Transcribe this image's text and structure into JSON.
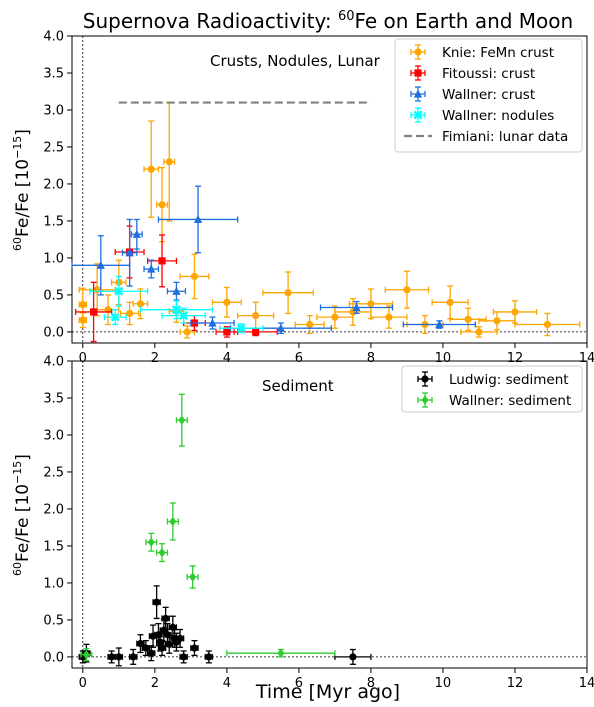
{
  "figure": {
    "title_main": "Supernova Radioactivity: ",
    "title_sup": "60",
    "title_rest": "Fe on Earth and Moon",
    "xlabel": "Time [Myr ago]"
  },
  "chart_data": [
    {
      "type": "scatter",
      "panel": "top",
      "annotation": "Crusts, Nodules, Lunar",
      "ylabel_sup": "60",
      "ylabel_main": "Fe/Fe  [10",
      "ylabel_exp": "−15",
      "ylabel_end": "]",
      "xlim": [
        -0.3,
        14
      ],
      "ylim": [
        -0.15,
        4.0
      ],
      "xticks": [
        0,
        2,
        4,
        6,
        8,
        10,
        12,
        14
      ],
      "yticks": [
        0.0,
        0.5,
        1.0,
        1.5,
        2.0,
        2.5,
        3.0,
        3.5,
        4.0
      ],
      "legend_position": "top-right",
      "series": [
        {
          "name": "Knie: FeMn crust",
          "color": "#FFA500",
          "marker": "circle",
          "points": [
            {
              "x": 0.0,
              "y": 0.16,
              "xerr": 0.1,
              "yerr": 0.1
            },
            {
              "x": 0.0,
              "y": 0.37,
              "xerr": 0.1,
              "yerr": 0.22
            },
            {
              "x": 0.4,
              "y": 0.57,
              "xerr": 0.5,
              "yerr": 0.35
            },
            {
              "x": 0.7,
              "y": 0.3,
              "xerr": 0.3,
              "yerr": 0.2
            },
            {
              "x": 1.0,
              "y": 0.67,
              "xerr": 0.2,
              "yerr": 0.3
            },
            {
              "x": 1.3,
              "y": 0.25,
              "xerr": 0.25,
              "yerr": 0.15
            },
            {
              "x": 1.6,
              "y": 0.38,
              "xerr": 0.2,
              "yerr": 0.2
            },
            {
              "x": 1.9,
              "y": 2.2,
              "xerr": 0.2,
              "yerr": 0.65
            },
            {
              "x": 2.2,
              "y": 1.72,
              "xerr": 0.15,
              "yerr": 0.5
            },
            {
              "x": 2.4,
              "y": 2.3,
              "xerr": 0.15,
              "yerr": 0.8
            },
            {
              "x": 2.6,
              "y": 0.28,
              "xerr": 0.2,
              "yerr": 0.15
            },
            {
              "x": 2.9,
              "y": 0.0,
              "xerr": 0.2,
              "yerr": 0.08
            },
            {
              "x": 3.1,
              "y": 0.75,
              "xerr": 0.4,
              "yerr": 0.3
            },
            {
              "x": 4.0,
              "y": 0.4,
              "xerr": 0.4,
              "yerr": 0.2
            },
            {
              "x": 4.8,
              "y": 0.22,
              "xerr": 0.5,
              "yerr": 0.18
            },
            {
              "x": 5.7,
              "y": 0.53,
              "xerr": 0.7,
              "yerr": 0.28
            },
            {
              "x": 6.3,
              "y": 0.1,
              "xerr": 0.4,
              "yerr": 0.12
            },
            {
              "x": 7.0,
              "y": 0.2,
              "xerr": 0.5,
              "yerr": 0.15
            },
            {
              "x": 7.5,
              "y": 0.27,
              "xerr": 0.5,
              "yerr": 0.18
            },
            {
              "x": 8.0,
              "y": 0.38,
              "xerr": 0.6,
              "yerr": 0.2
            },
            {
              "x": 8.5,
              "y": 0.2,
              "xerr": 0.5,
              "yerr": 0.15
            },
            {
              "x": 9.0,
              "y": 0.57,
              "xerr": 0.6,
              "yerr": 0.25
            },
            {
              "x": 9.5,
              "y": 0.1,
              "xerr": 0.5,
              "yerr": 0.12
            },
            {
              "x": 10.2,
              "y": 0.4,
              "xerr": 0.5,
              "yerr": 0.22
            },
            {
              "x": 10.7,
              "y": 0.17,
              "xerr": 0.5,
              "yerr": 0.15
            },
            {
              "x": 11.0,
              "y": 0.0,
              "xerr": 0.5,
              "yerr": 0.07
            },
            {
              "x": 11.5,
              "y": 0.15,
              "xerr": 0.5,
              "yerr": 0.12
            },
            {
              "x": 12.0,
              "y": 0.27,
              "xerr": 0.6,
              "yerr": 0.15
            },
            {
              "x": 12.9,
              "y": 0.1,
              "xerr": 0.9,
              "yerr": 0.15
            }
          ]
        },
        {
          "name": "Fitoussi: crust",
          "color": "#FF0000",
          "marker": "square",
          "points": [
            {
              "x": 0.3,
              "y": 0.27,
              "xerr": 0.5,
              "yerr": 0.4
            },
            {
              "x": 1.3,
              "y": 1.08,
              "xerr": 0.4,
              "yerr": 0.35
            },
            {
              "x": 2.2,
              "y": 0.96,
              "xerr": 0.4,
              "yerr": 0.35
            },
            {
              "x": 3.1,
              "y": 0.12,
              "xerr": 0.3,
              "yerr": 0.1
            },
            {
              "x": 4.0,
              "y": 0.0,
              "xerr": 0.3,
              "yerr": 0.07
            },
            {
              "x": 4.8,
              "y": 0.0,
              "xerr": 0.6,
              "yerr": 0.05
            }
          ]
        },
        {
          "name": "Wallner: crust",
          "color": "#1F6FE0",
          "marker": "triangle",
          "points": [
            {
              "x": 0.5,
              "y": 0.9,
              "xerr": 0.8,
              "yerr": 0.4
            },
            {
              "x": 1.3,
              "y": 1.07,
              "xerr": 0.2,
              "yerr": 0.45
            },
            {
              "x": 1.5,
              "y": 1.32,
              "xerr": 0.15,
              "yerr": 0.2
            },
            {
              "x": 1.9,
              "y": 0.85,
              "xerr": 0.2,
              "yerr": 0.12
            },
            {
              "x": 2.6,
              "y": 0.55,
              "xerr": 0.25,
              "yerr": 0.12
            },
            {
              "x": 3.2,
              "y": 1.52,
              "xerr": 1.1,
              "yerr": 0.45
            },
            {
              "x": 3.6,
              "y": 0.12,
              "xerr": 0.6,
              "yerr": 0.08
            },
            {
              "x": 5.5,
              "y": 0.05,
              "xerr": 1.4,
              "yerr": 0.07
            },
            {
              "x": 7.6,
              "y": 0.33,
              "xerr": 1.0,
              "yerr": 0.08
            },
            {
              "x": 9.9,
              "y": 0.1,
              "xerr": 1.0,
              "yerr": 0.05
            }
          ]
        },
        {
          "name": "Wallner: nodules",
          "color": "#00FFFF",
          "marker": "x",
          "points": [
            {
              "x": 1.0,
              "y": 0.55,
              "xerr": 0.8,
              "yerr": 0.2
            },
            {
              "x": 0.9,
              "y": 0.2,
              "xerr": 0.3,
              "yerr": 0.1
            },
            {
              "x": 2.6,
              "y": 0.3,
              "xerr": 1.0,
              "yerr": 0.12
            },
            {
              "x": 2.8,
              "y": 0.22,
              "xerr": 0.6,
              "yerr": 0.1
            },
            {
              "x": 4.4,
              "y": 0.05,
              "xerr": 0.6,
              "yerr": 0.06
            }
          ]
        },
        {
          "name": "Fimiani: lunar data",
          "color": "#808080",
          "style": "dashed",
          "line": {
            "x": [
              1.0,
              8.0
            ],
            "y": [
              3.1,
              3.1
            ]
          }
        }
      ]
    },
    {
      "type": "scatter",
      "panel": "bottom",
      "annotation": "Sediment",
      "ylabel_sup": "60",
      "ylabel_main": "Fe/Fe  [10",
      "ylabel_exp": "−15",
      "ylabel_end": "]",
      "xlim": [
        -0.3,
        14
      ],
      "ylim": [
        -0.15,
        4.0
      ],
      "xticks": [
        0,
        2,
        4,
        6,
        8,
        10,
        12,
        14
      ],
      "yticks": [
        0.0,
        0.5,
        1.0,
        1.5,
        2.0,
        2.5,
        3.0,
        3.5,
        4.0
      ],
      "legend_position": "top-right",
      "series": [
        {
          "name": "Ludwig: sediment",
          "color": "#000000",
          "marker": "circle",
          "points": [
            {
              "x": 0.0,
              "y": 0.0,
              "xerr": 0.1,
              "yerr": 0.08
            },
            {
              "x": 0.1,
              "y": 0.05,
              "xerr": 0.1,
              "yerr": 0.12
            },
            {
              "x": 0.8,
              "y": 0.0,
              "xerr": 0.1,
              "yerr": 0.08
            },
            {
              "x": 1.0,
              "y": 0.0,
              "xerr": 0.1,
              "yerr": 0.12
            },
            {
              "x": 1.4,
              "y": 0.0,
              "xerr": 0.1,
              "yerr": 0.1
            },
            {
              "x": 1.6,
              "y": 0.18,
              "xerr": 0.1,
              "yerr": 0.12
            },
            {
              "x": 1.75,
              "y": 0.12,
              "xerr": 0.1,
              "yerr": 0.1
            },
            {
              "x": 1.9,
              "y": 0.05,
              "xerr": 0.1,
              "yerr": 0.1
            },
            {
              "x": 1.95,
              "y": 0.28,
              "xerr": 0.1,
              "yerr": 0.15
            },
            {
              "x": 2.05,
              "y": 0.74,
              "xerr": 0.1,
              "yerr": 0.22
            },
            {
              "x": 2.1,
              "y": 0.3,
              "xerr": 0.1,
              "yerr": 0.15
            },
            {
              "x": 2.15,
              "y": 0.2,
              "xerr": 0.1,
              "yerr": 0.12
            },
            {
              "x": 2.2,
              "y": 0.12,
              "xerr": 0.1,
              "yerr": 0.1
            },
            {
              "x": 2.25,
              "y": 0.36,
              "xerr": 0.1,
              "yerr": 0.15
            },
            {
              "x": 2.3,
              "y": 0.52,
              "xerr": 0.1,
              "yerr": 0.15
            },
            {
              "x": 2.35,
              "y": 0.3,
              "xerr": 0.1,
              "yerr": 0.15
            },
            {
              "x": 2.4,
              "y": 0.17,
              "xerr": 0.1,
              "yerr": 0.12
            },
            {
              "x": 2.5,
              "y": 0.4,
              "xerr": 0.1,
              "yerr": 0.15
            },
            {
              "x": 2.55,
              "y": 0.25,
              "xerr": 0.1,
              "yerr": 0.12
            },
            {
              "x": 2.6,
              "y": 0.2,
              "xerr": 0.1,
              "yerr": 0.12
            },
            {
              "x": 2.7,
              "y": 0.25,
              "xerr": 0.1,
              "yerr": 0.12
            },
            {
              "x": 2.8,
              "y": 0.0,
              "xerr": 0.1,
              "yerr": 0.08
            },
            {
              "x": 3.1,
              "y": 0.12,
              "xerr": 0.1,
              "yerr": 0.1
            },
            {
              "x": 3.5,
              "y": 0.0,
              "xerr": 0.1,
              "yerr": 0.08
            },
            {
              "x": 7.5,
              "y": 0.0,
              "xerr": 0.5,
              "yerr": 0.1
            }
          ]
        },
        {
          "name": "Wallner: sediment",
          "color": "#2ECC2E",
          "marker": "diamond",
          "points": [
            {
              "x": 0.1,
              "y": 0.03,
              "xerr": 0.15,
              "yerr": 0.08
            },
            {
              "x": 1.9,
              "y": 1.55,
              "xerr": 0.15,
              "yerr": 0.12
            },
            {
              "x": 2.2,
              "y": 1.41,
              "xerr": 0.15,
              "yerr": 0.12
            },
            {
              "x": 2.5,
              "y": 1.83,
              "xerr": 0.15,
              "yerr": 0.25
            },
            {
              "x": 2.75,
              "y": 3.2,
              "xerr": 0.15,
              "yerr": 0.35
            },
            {
              "x": 3.05,
              "y": 1.08,
              "xerr": 0.15,
              "yerr": 0.15
            },
            {
              "x": 5.5,
              "y": 0.05,
              "xerr": 1.5,
              "yerr": 0.05
            }
          ]
        }
      ]
    }
  ]
}
